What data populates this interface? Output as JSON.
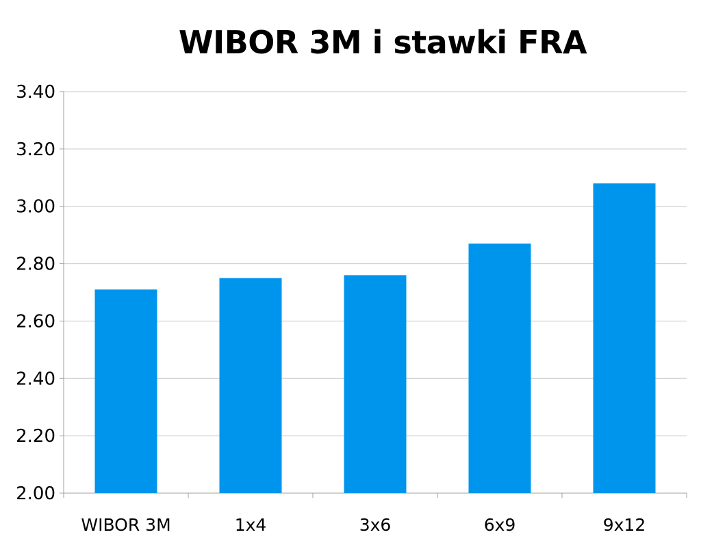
{
  "chart_data": {
    "type": "bar",
    "title": "WIBOR 3M i stawki FRA",
    "xlabel": "",
    "ylabel": "",
    "categories": [
      "WIBOR 3M",
      "1x4",
      "3x6",
      "6x9",
      "9x12"
    ],
    "values": [
      2.71,
      2.75,
      2.76,
      2.87,
      3.08
    ],
    "ylim": [
      2.0,
      3.4
    ],
    "yticks": [
      "2.00",
      "2.20",
      "2.40",
      "2.60",
      "2.80",
      "3.00",
      "3.20",
      "3.40"
    ],
    "grid": true,
    "legend": "none",
    "bar_color": "#0095EC",
    "grid_color": "#C8C8C8",
    "axis_color": "#A0A0A0"
  }
}
